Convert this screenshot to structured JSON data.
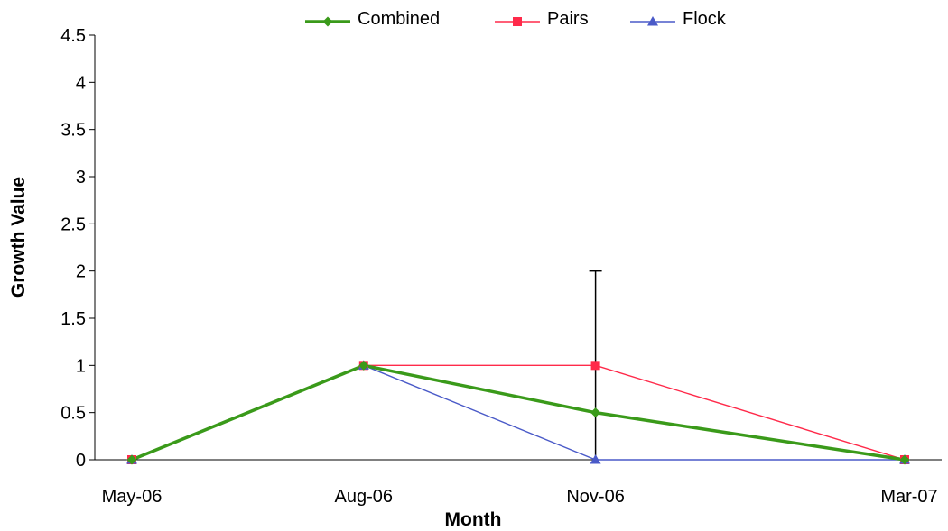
{
  "chart_data": {
    "type": "line",
    "title": "",
    "xlabel": "Month",
    "ylabel": "Growth Value",
    "categories": [
      "May-06",
      "Aug-06",
      "Nov-06",
      "Mar-07"
    ],
    "x_months": [
      0,
      3,
      6,
      10
    ],
    "ylim": [
      0,
      4.5
    ],
    "yticks": [
      "0",
      "0.5",
      "1",
      "1.5",
      "2",
      "2.5",
      "3",
      "3.5",
      "4",
      "4.5"
    ],
    "grid": false,
    "legend_position": "top",
    "series": [
      {
        "name": "Combined",
        "values": [
          0,
          1,
          0.5,
          0
        ],
        "color": "#3a9a1a",
        "marker": "diamond",
        "line_weight": "thick"
      },
      {
        "name": "Pairs",
        "values": [
          0,
          1,
          1,
          0
        ],
        "color": "#ff2a4a",
        "marker": "square",
        "line_weight": "thin"
      },
      {
        "name": "Flock",
        "values": [
          0,
          1,
          0,
          0
        ],
        "color": "#4a5ac8",
        "marker": "triangle",
        "line_weight": "thin"
      }
    ],
    "error_bars": [
      {
        "series": "Combined",
        "category": "Nov-06",
        "low": 0,
        "high": 2
      }
    ]
  }
}
